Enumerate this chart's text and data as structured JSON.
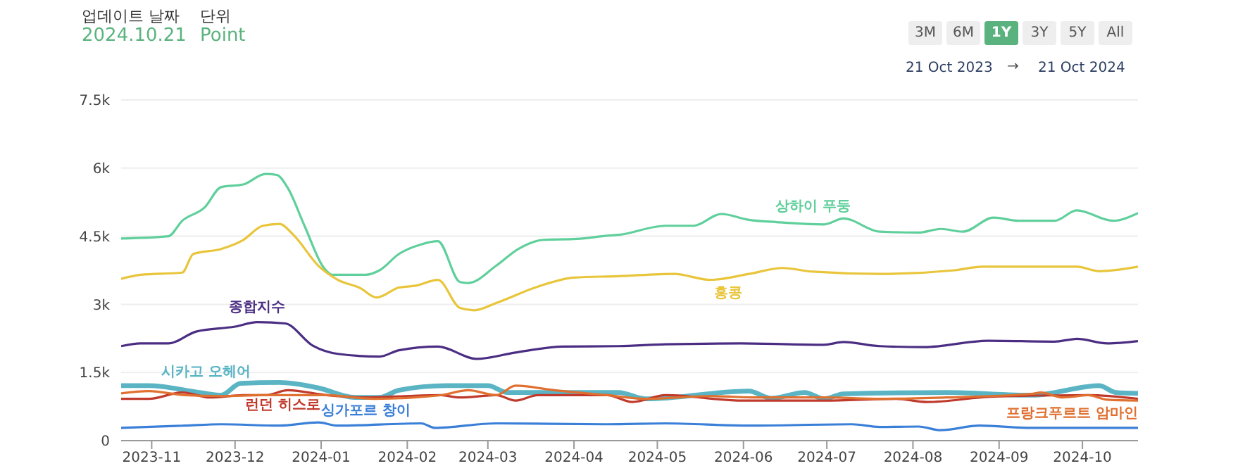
{
  "chart_data": {
    "type": "line",
    "annotations": [
      "업데이트 날짜",
      "2024.10.21",
      "단위",
      "Point",
      "3M",
      "6M",
      "1Y",
      "3Y",
      "5Y",
      "All",
      "21 Oct 2023",
      "→",
      "21 Oct 2024"
    ],
    "xlim": [
      "2023-10-21",
      "2024-10-21"
    ],
    "xticks": [
      "2023-11",
      "2023-12",
      "2024-01",
      "2024-02",
      "2024-03",
      "2024-04",
      "2024-05",
      "2024-06",
      "2024-07",
      "2024-08",
      "2024-09",
      "2024-10"
    ],
    "ylim": [
      0,
      7500
    ],
    "yticks": [
      0,
      {
        "value": 1500,
        "label": "1.5k"
      },
      {
        "value": 3000,
        "label": "3k"
      },
      {
        "value": 4500,
        "label": "4.5k"
      },
      {
        "value": 6000,
        "label": "6k"
      },
      {
        "value": 7500,
        "label": "7.5k"
      }
    ],
    "grid": "y",
    "line_style": "solid",
    "series": [
      {
        "name": "상하이 푸둥",
        "color": "#5fcf9b",
        "x": [
          "2023-10-21",
          "2023-11-07",
          "2023-11-12",
          "2023-11-20",
          "2023-11-26",
          "2023-12-04",
          "2023-12-12",
          "2023-12-16",
          "2023-12-20",
          "2023-12-26",
          "2024-01-02",
          "2024-01-05",
          "2024-01-17",
          "2024-01-22",
          "2024-01-29",
          "2024-02-06",
          "2024-02-12",
          "2024-02-20",
          "2024-02-23",
          "2024-03-04",
          "2024-03-12",
          "2024-03-21",
          "2024-04-02",
          "2024-04-13",
          "2024-04-17",
          "2024-05-04",
          "2024-05-14",
          "2024-05-24",
          "2024-06-03",
          "2024-06-13",
          "2024-06-30",
          "2024-07-07",
          "2024-07-20",
          "2024-08-03",
          "2024-08-11",
          "2024-08-19",
          "2024-08-30",
          "2024-09-08",
          "2024-09-21",
          "2024-09-29",
          "2024-10-12",
          "2024-10-21"
        ],
        "values": [
          4450,
          4500,
          4840,
          5130,
          5580,
          5640,
          5870,
          5850,
          5560,
          4730,
          3800,
          3650,
          3650,
          3750,
          4110,
          4320,
          4390,
          3490,
          3470,
          3850,
          4220,
          4420,
          4440,
          4510,
          4530,
          4730,
          4730,
          4990,
          4860,
          4810,
          4760,
          4890,
          4600,
          4580,
          4660,
          4600,
          4910,
          4840,
          4840,
          5070,
          4840,
          5010
        ]
      },
      {
        "name": "홍콩",
        "color": "#e8c53a",
        "x": [
          "2023-10-21",
          "2023-10-28",
          "2023-11-12",
          "2023-11-16",
          "2023-11-26",
          "2023-12-04",
          "2023-12-11",
          "2023-12-17",
          "2023-12-22",
          "2023-12-31",
          "2024-01-07",
          "2024-01-15",
          "2024-01-21",
          "2024-01-29",
          "2024-02-04",
          "2024-02-12",
          "2024-02-20",
          "2024-02-25",
          "2024-03-04",
          "2024-03-19",
          "2024-04-01",
          "2024-04-17",
          "2024-05-07",
          "2024-05-20",
          "2024-06-03",
          "2024-06-15",
          "2024-06-26",
          "2024-07-20",
          "2024-08-16",
          "2024-08-26",
          "2024-09-29",
          "2024-10-07",
          "2024-10-21"
        ],
        "values": [
          3560,
          3650,
          3700,
          4110,
          4220,
          4420,
          4730,
          4770,
          4530,
          3850,
          3540,
          3360,
          3150,
          3370,
          3410,
          3540,
          2920,
          2870,
          3030,
          3390,
          3590,
          3620,
          3670,
          3540,
          3670,
          3800,
          3720,
          3670,
          3750,
          3830,
          3830,
          3730,
          3830
        ]
      },
      {
        "name": "종합지수",
        "color": "#4b2e83",
        "x": [
          "2023-10-21",
          "2023-10-28",
          "2023-11-07",
          "2023-11-17",
          "2023-12-01",
          "2023-12-09",
          "2023-12-19",
          "2023-12-29",
          "2024-01-07",
          "2024-01-22",
          "2024-01-29",
          "2024-02-12",
          "2024-02-26",
          "2024-03-11",
          "2024-03-28",
          "2024-04-17",
          "2024-05-04",
          "2024-05-31",
          "2024-06-30",
          "2024-07-07",
          "2024-07-20",
          "2024-08-05",
          "2024-08-28",
          "2024-09-21",
          "2024-09-29",
          "2024-10-10",
          "2024-10-21"
        ],
        "values": [
          2080,
          2140,
          2140,
          2400,
          2510,
          2610,
          2580,
          2090,
          1910,
          1850,
          1990,
          2070,
          1800,
          1940,
          2070,
          2080,
          2120,
          2140,
          2110,
          2170,
          2080,
          2060,
          2200,
          2180,
          2240,
          2140,
          2190
        ]
      },
      {
        "name": "시카고 오헤어",
        "color": "#5ab4c4",
        "x": [
          "2023-10-21",
          "2023-10-31",
          "2023-11-18",
          "2023-11-26",
          "2023-12-03",
          "2023-12-17",
          "2023-12-31",
          "2024-01-13",
          "2024-01-22",
          "2024-01-29",
          "2024-02-15",
          "2024-03-01",
          "2024-03-08",
          "2024-03-28",
          "2024-04-17",
          "2024-04-27",
          "2024-06-03",
          "2024-06-11",
          "2024-06-23",
          "2024-06-30",
          "2024-07-07",
          "2024-08-13",
          "2024-09-13",
          "2024-10-07",
          "2024-10-13",
          "2024-10-21"
        ],
        "values": [
          1210,
          1210,
          1060,
          1000,
          1260,
          1280,
          1160,
          950,
          950,
          1110,
          1210,
          1210,
          1060,
          1060,
          1060,
          920,
          1090,
          930,
          1060,
          920,
          1030,
          1060,
          1000,
          1210,
          1060,
          1040
        ]
      },
      {
        "name": "런던 히스로",
        "color": "#c0392b",
        "x": [
          "2023-10-21",
          "2023-10-31",
          "2023-11-12",
          "2023-11-22",
          "2023-12-04",
          "2023-12-12",
          "2023-12-20",
          "2024-01-03",
          "2024-01-17",
          "2024-01-31",
          "2024-02-13",
          "2024-02-20",
          "2024-03-04",
          "2024-03-11",
          "2024-03-19",
          "2024-04-13",
          "2024-04-22",
          "2024-05-04",
          "2024-06-01",
          "2024-06-30",
          "2024-07-26",
          "2024-08-06",
          "2024-08-30",
          "2024-10-03",
          "2024-10-21"
        ],
        "values": [
          920,
          920,
          1060,
          950,
          1000,
          1000,
          1110,
          1000,
          950,
          980,
          1000,
          950,
          1000,
          880,
          1000,
          1000,
          850,
          1000,
          880,
          880,
          920,
          850,
          970,
          1000,
          920
        ]
      },
      {
        "name": "싱가포르 창이",
        "color": "#3a7fd8",
        "x": [
          "2023-10-21",
          "2023-11-13",
          "2023-11-26",
          "2023-12-17",
          "2023-12-31",
          "2024-01-07",
          "2024-02-06",
          "2024-02-11",
          "2024-03-04",
          "2024-04-13",
          "2024-05-04",
          "2024-06-03",
          "2024-07-10",
          "2024-07-20",
          "2024-08-03",
          "2024-08-11",
          "2024-08-25",
          "2024-09-13",
          "2024-10-21"
        ],
        "values": [
          280,
          330,
          360,
          330,
          400,
          330,
          380,
          280,
          380,
          360,
          380,
          330,
          360,
          300,
          310,
          230,
          330,
          280,
          280
        ]
      },
      {
        "name": "프랑크푸르트 암마인",
        "color": "#e07030",
        "x": [
          "2023-10-21",
          "2023-10-31",
          "2023-11-13",
          "2023-11-26",
          "2023-12-11",
          "2024-01-03",
          "2024-01-20",
          "2024-02-13",
          "2024-02-23",
          "2024-03-04",
          "2024-03-11",
          "2024-03-25",
          "2024-04-13",
          "2024-04-27",
          "2024-05-20",
          "2024-06-06",
          "2024-06-30",
          "2024-07-20",
          "2024-08-13",
          "2024-09-13",
          "2024-09-16",
          "2024-09-24",
          "2024-10-03",
          "2024-10-10",
          "2024-10-21"
        ],
        "values": [
          1040,
          1090,
          1000,
          980,
          1000,
          1000,
          920,
          1000,
          1110,
          1000,
          1210,
          1110,
          1000,
          920,
          980,
          950,
          950,
          920,
          950,
          1030,
          1060,
          950,
          1000,
          900,
          880
        ]
      }
    ]
  }
}
